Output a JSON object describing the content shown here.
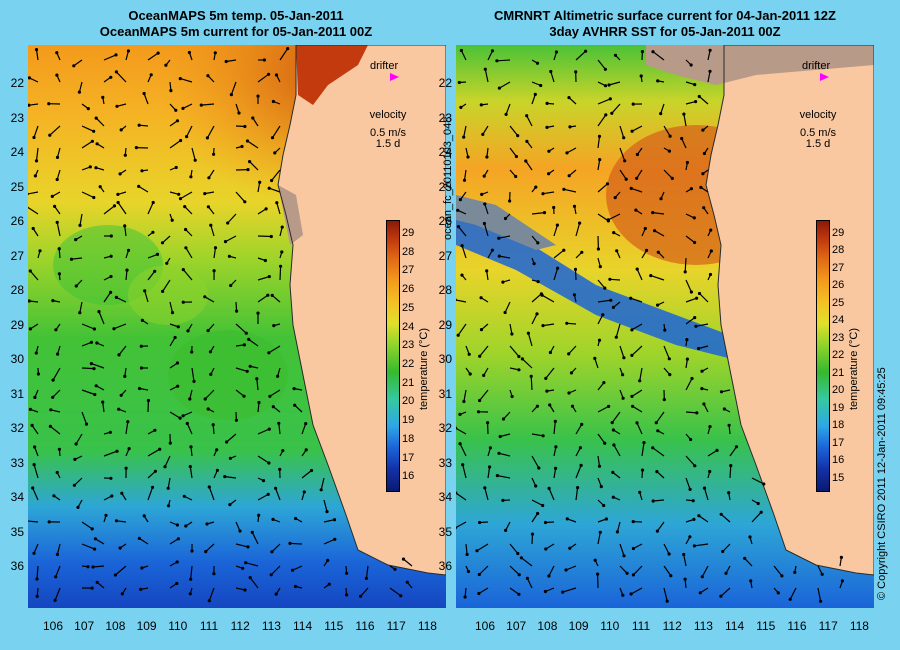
{
  "left_panel": {
    "title_line1": "OceanMAPS 5m temp. 05-Jan-2011",
    "title_line2": "OceanMAPS 5m current for 05-Jan-2011 00Z",
    "colorbar_min": 16,
    "colorbar_max": 29
  },
  "right_panel": {
    "title_line1": "CMRNRT Altimetric surface current for 04-Jan-2011 12Z",
    "title_line2": "3day AVHRR SST for 05-Jan-2011 00Z",
    "colorbar_min": 15,
    "colorbar_max": 29
  },
  "legend": {
    "drifter_label": "drifter",
    "velocity_label": "velocity",
    "velocity_scale": "0.5 m/s",
    "velocity_time": "1.5 d",
    "drifter_color": "#ff00ff"
  },
  "colorbar": {
    "label": "temperature (°C)",
    "left_ticks": [
      "29",
      "28",
      "27",
      "26",
      "25",
      "24",
      "23",
      "22",
      "21",
      "20",
      "19",
      "18",
      "17",
      "16"
    ],
    "right_ticks": [
      "29",
      "28",
      "27",
      "26",
      "25",
      "24",
      "23",
      "22",
      "21",
      "20",
      "19",
      "18",
      "17",
      "16",
      "15"
    ]
  },
  "axes": {
    "latitude_ticks": [
      "22",
      "23",
      "24",
      "25",
      "26",
      "27",
      "28",
      "29",
      "30",
      "31",
      "32",
      "33",
      "34",
      "35",
      "36"
    ],
    "longitude_ticks": [
      "106",
      "107",
      "108",
      "109",
      "110",
      "111",
      "112",
      "113",
      "114",
      "115",
      "116",
      "117",
      "118"
    ]
  },
  "file_id": "ocean_fc_20110103_048",
  "copyright": "© Copyright CSIRO 2011   12-Jan-2011 09:45:25",
  "colors": {
    "background": "#79d3f0",
    "land": "#f9c8a0",
    "coast_line": "#5ccfcf"
  }
}
